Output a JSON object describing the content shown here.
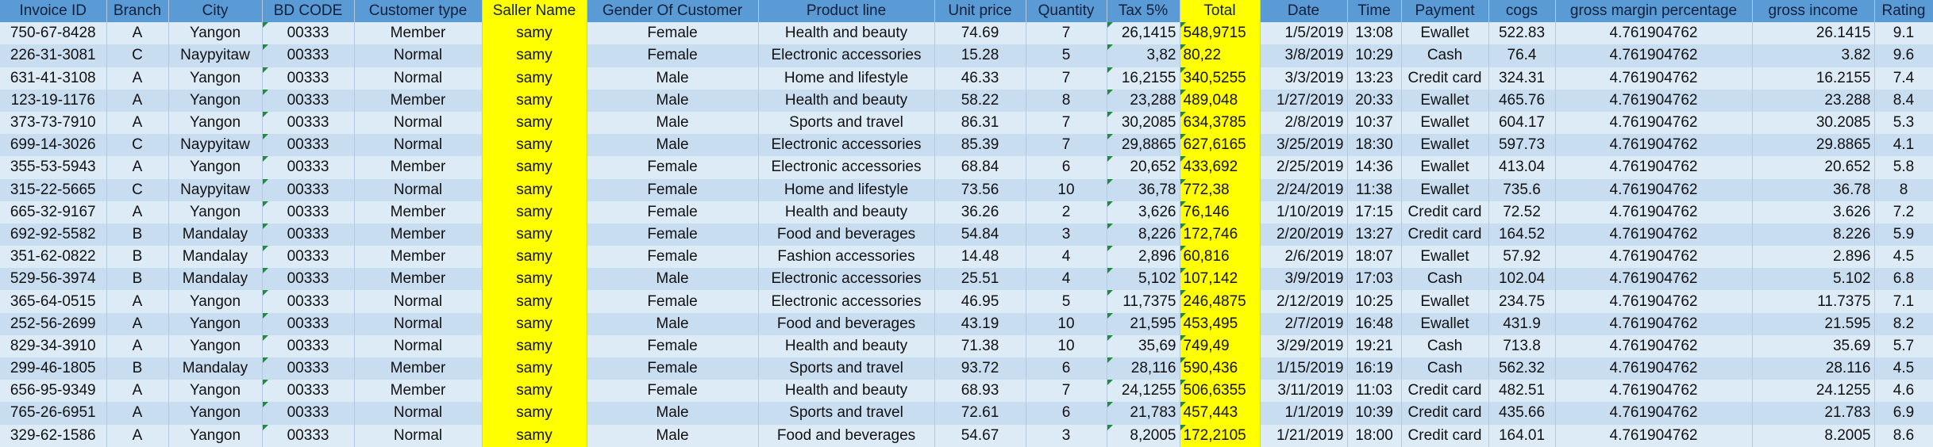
{
  "table": {
    "header": [
      "Invoice ID",
      "Branch",
      "City",
      "BD CODE",
      "Customer type",
      "Saller Name",
      "Gender Of Customer",
      "Product line",
      "Unit price",
      "Quantity",
      "Tax 5%",
      "Total",
      "Date",
      "Time",
      "Payment",
      "cogs",
      "gross margin percentage",
      "gross income",
      "Rating"
    ],
    "rows": [
      [
        "750-67-8428",
        "A",
        "Yangon",
        "00333",
        "Member",
        "samy",
        "Female",
        "Health and beauty",
        "74.69",
        "7",
        "26,1415",
        "548,9715",
        "1/5/2019",
        "13:08",
        "Ewallet",
        "522.83",
        "4.761904762",
        "26.1415",
        "9.1"
      ],
      [
        "226-31-3081",
        "C",
        "Naypyitaw",
        "00333",
        "Normal",
        "samy",
        "Female",
        "Electronic accessories",
        "15.28",
        "5",
        "3,82",
        "80,22",
        "3/8/2019",
        "10:29",
        "Cash",
        "76.4",
        "4.761904762",
        "3.82",
        "9.6"
      ],
      [
        "631-41-3108",
        "A",
        "Yangon",
        "00333",
        "Normal",
        "samy",
        "Male",
        "Home and lifestyle",
        "46.33",
        "7",
        "16,2155",
        "340,5255",
        "3/3/2019",
        "13:23",
        "Credit card",
        "324.31",
        "4.761904762",
        "16.2155",
        "7.4"
      ],
      [
        "123-19-1176",
        "A",
        "Yangon",
        "00333",
        "Member",
        "samy",
        "Male",
        "Health and beauty",
        "58.22",
        "8",
        "23,288",
        "489,048",
        "1/27/2019",
        "20:33",
        "Ewallet",
        "465.76",
        "4.761904762",
        "23.288",
        "8.4"
      ],
      [
        "373-73-7910",
        "A",
        "Yangon",
        "00333",
        "Normal",
        "samy",
        "Male",
        "Sports and travel",
        "86.31",
        "7",
        "30,2085",
        "634,3785",
        "2/8/2019",
        "10:37",
        "Ewallet",
        "604.17",
        "4.761904762",
        "30.2085",
        "5.3"
      ],
      [
        "699-14-3026",
        "C",
        "Naypyitaw",
        "00333",
        "Normal",
        "samy",
        "Male",
        "Electronic accessories",
        "85.39",
        "7",
        "29,8865",
        "627,6165",
        "3/25/2019",
        "18:30",
        "Ewallet",
        "597.73",
        "4.761904762",
        "29.8865",
        "4.1"
      ],
      [
        "355-53-5943",
        "A",
        "Yangon",
        "00333",
        "Member",
        "samy",
        "Female",
        "Electronic accessories",
        "68.84",
        "6",
        "20,652",
        "433,692",
        "2/25/2019",
        "14:36",
        "Ewallet",
        "413.04",
        "4.761904762",
        "20.652",
        "5.8"
      ],
      [
        "315-22-5665",
        "C",
        "Naypyitaw",
        "00333",
        "Normal",
        "samy",
        "Female",
        "Home and lifestyle",
        "73.56",
        "10",
        "36,78",
        "772,38",
        "2/24/2019",
        "11:38",
        "Ewallet",
        "735.6",
        "4.761904762",
        "36.78",
        "8"
      ],
      [
        "665-32-9167",
        "A",
        "Yangon",
        "00333",
        "Member",
        "samy",
        "Female",
        "Health and beauty",
        "36.26",
        "2",
        "3,626",
        "76,146",
        "1/10/2019",
        "17:15",
        "Credit card",
        "72.52",
        "4.761904762",
        "3.626",
        "7.2"
      ],
      [
        "692-92-5582",
        "B",
        "Mandalay",
        "00333",
        "Member",
        "samy",
        "Female",
        "Food and beverages",
        "54.84",
        "3",
        "8,226",
        "172,746",
        "2/20/2019",
        "13:27",
        "Credit card",
        "164.52",
        "4.761904762",
        "8.226",
        "5.9"
      ],
      [
        "351-62-0822",
        "B",
        "Mandalay",
        "00333",
        "Member",
        "samy",
        "Female",
        "Fashion accessories",
        "14.48",
        "4",
        "2,896",
        "60,816",
        "2/6/2019",
        "18:07",
        "Ewallet",
        "57.92",
        "4.761904762",
        "2.896",
        "4.5"
      ],
      [
        "529-56-3974",
        "B",
        "Mandalay",
        "00333",
        "Member",
        "samy",
        "Male",
        "Electronic accessories",
        "25.51",
        "4",
        "5,102",
        "107,142",
        "3/9/2019",
        "17:03",
        "Cash",
        "102.04",
        "4.761904762",
        "5.102",
        "6.8"
      ],
      [
        "365-64-0515",
        "A",
        "Yangon",
        "00333",
        "Normal",
        "samy",
        "Female",
        "Electronic accessories",
        "46.95",
        "5",
        "11,7375",
        "246,4875",
        "2/12/2019",
        "10:25",
        "Ewallet",
        "234.75",
        "4.761904762",
        "11.7375",
        "7.1"
      ],
      [
        "252-56-2699",
        "A",
        "Yangon",
        "00333",
        "Normal",
        "samy",
        "Male",
        "Food and beverages",
        "43.19",
        "10",
        "21,595",
        "453,495",
        "2/7/2019",
        "16:48",
        "Ewallet",
        "431.9",
        "4.761904762",
        "21.595",
        "8.2"
      ],
      [
        "829-34-3910",
        "A",
        "Yangon",
        "00333",
        "Normal",
        "samy",
        "Female",
        "Health and beauty",
        "71.38",
        "10",
        "35,69",
        "749,49",
        "3/29/2019",
        "19:21",
        "Cash",
        "713.8",
        "4.761904762",
        "35.69",
        "5.7"
      ],
      [
        "299-46-1805",
        "B",
        "Mandalay",
        "00333",
        "Member",
        "samy",
        "Female",
        "Sports and travel",
        "93.72",
        "6",
        "28,116",
        "590,436",
        "1/15/2019",
        "16:19",
        "Cash",
        "562.32",
        "4.761904762",
        "28.116",
        "4.5"
      ],
      [
        "656-95-9349",
        "A",
        "Yangon",
        "00333",
        "Member",
        "samy",
        "Female",
        "Health and beauty",
        "68.93",
        "7",
        "24,1255",
        "506,6355",
        "3/11/2019",
        "11:03",
        "Credit card",
        "482.51",
        "4.761904762",
        "24.1255",
        "4.6"
      ],
      [
        "765-26-6951",
        "A",
        "Yangon",
        "00333",
        "Normal",
        "samy",
        "Male",
        "Sports and travel",
        "72.61",
        "6",
        "21,783",
        "457,443",
        "1/1/2019",
        "10:39",
        "Credit card",
        "435.66",
        "4.761904762",
        "21.783",
        "6.9"
      ],
      [
        "329-62-1586",
        "A",
        "Yangon",
        "00333",
        "Normal",
        "samy",
        "Male",
        "Food and beverages",
        "54.67",
        "3",
        "8,2005",
        "172,2105",
        "1/21/2019",
        "18:00",
        "Credit card",
        "164.01",
        "4.761904762",
        "8.2005",
        "8.6"
      ]
    ]
  }
}
